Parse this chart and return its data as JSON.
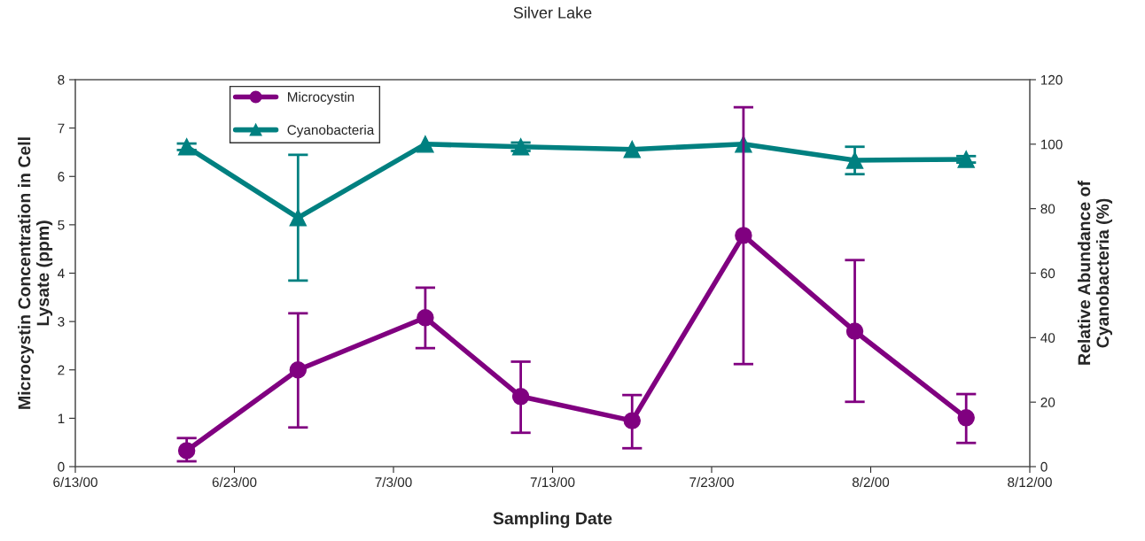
{
  "chart_data": {
    "type": "line",
    "title": "Silver Lake",
    "xlabel": "Sampling Date",
    "ylabel": "Microcystin Concentration in Cell\nLysate (ppm)",
    "y2label": "Relative Abundance of\nCyanobacteria (%)",
    "x": [
      "2000-06-20",
      "2000-06-27",
      "2000-07-05",
      "2000-07-11",
      "2000-07-18",
      "2000-07-25",
      "2000-08-01",
      "2000-08-08"
    ],
    "series": [
      {
        "name": "Microcystin",
        "color": "#800080",
        "marker": "circle",
        "values": [
          0.33,
          2.0,
          3.08,
          1.45,
          0.95,
          4.78,
          2.8,
          1.01
        ],
        "errors": [
          [
            0.11,
            0.59
          ],
          [
            0.81,
            3.17
          ],
          [
            2.45,
            3.7
          ],
          [
            0.7,
            2.17
          ],
          [
            0.38,
            1.48
          ],
          [
            2.12,
            7.43
          ],
          [
            1.34,
            4.27
          ],
          [
            0.49,
            1.5
          ]
        ]
      },
      {
        "name": "Cyanobacteria",
        "color": "#008080",
        "marker": "triangle",
        "axis": "y2",
        "values": [
          99.2,
          77.2,
          100,
          99.2,
          98.4,
          100,
          95,
          95.3
        ],
        "errors": [
          1,
          19.5,
          null,
          1.3,
          null,
          null,
          [
            90.7,
            99.2
          ],
          1
        ]
      }
    ],
    "xlim": [
      "2000-06-13",
      "2000-08-12"
    ],
    "xticks": [
      {
        "value": "2000-06-13",
        "label": "6/13/00"
      },
      {
        "value": "2000-06-23",
        "label": "6/23/00"
      },
      {
        "value": "2000-07-03",
        "label": "7/3/00"
      },
      {
        "value": "2000-07-13",
        "label": "7/13/00"
      },
      {
        "value": "2000-07-23",
        "label": "7/23/00"
      },
      {
        "value": "2000-08-02",
        "label": "8/2/00"
      },
      {
        "value": "2000-08-12",
        "label": "8/12/00"
      }
    ],
    "ylim": [
      0,
      8
    ],
    "yticks": [
      0,
      1,
      2,
      3,
      4,
      5,
      6,
      7,
      8
    ],
    "y2lim": [
      0,
      120
    ],
    "y2ticks": [
      0,
      20,
      40,
      60,
      80,
      100,
      120
    ],
    "grid": false,
    "legend": "top left",
    "line_style": "solid"
  }
}
